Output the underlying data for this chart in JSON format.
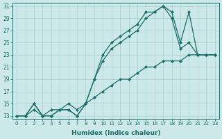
{
  "xlabel": "Humidex (Indice chaleur)",
  "bg_color": "#cce8e8",
  "line_color": "#1a6e6a",
  "grid_color": "#aad0d0",
  "xlim": [
    -0.5,
    23.5
  ],
  "ylim": [
    12.5,
    31.5
  ],
  "xticks": [
    0,
    1,
    2,
    3,
    4,
    5,
    6,
    7,
    8,
    9,
    10,
    11,
    12,
    13,
    14,
    15,
    16,
    17,
    18,
    19,
    20,
    21,
    22,
    23
  ],
  "yticks": [
    13,
    15,
    17,
    19,
    21,
    23,
    25,
    27,
    29,
    31
  ],
  "line1_x": [
    0,
    1,
    2,
    3,
    4,
    5,
    6,
    7,
    8,
    9,
    10,
    11,
    12,
    13,
    14,
    15,
    16,
    17,
    18,
    19,
    20,
    21,
    22,
    23
  ],
  "line1_y": [
    13,
    13,
    15,
    13,
    13,
    14,
    14,
    13,
    15,
    19,
    22,
    24,
    25,
    26,
    27,
    29,
    30,
    31,
    29,
    24,
    25,
    23,
    23,
    23
  ],
  "line2_x": [
    0,
    1,
    2,
    3,
    4,
    5,
    6,
    7,
    8,
    9,
    10,
    11,
    12,
    13,
    14,
    15,
    16,
    17,
    18,
    19,
    20,
    21,
    22,
    23
  ],
  "line2_y": [
    13,
    13,
    15,
    13,
    13,
    14,
    14,
    13,
    15,
    19,
    23,
    25,
    26,
    27,
    28,
    30,
    30,
    31,
    30,
    25,
    30,
    23,
    23,
    23
  ],
  "line3_x": [
    0,
    1,
    2,
    3,
    4,
    5,
    6,
    7,
    8,
    9,
    10,
    11,
    12,
    13,
    14,
    15,
    16,
    17,
    18,
    19,
    20,
    21,
    22,
    23
  ],
  "line3_y": [
    13,
    13,
    14,
    13,
    14,
    14,
    15,
    14,
    15,
    16,
    17,
    18,
    19,
    19,
    20,
    21,
    21,
    22,
    22,
    22,
    23,
    23,
    23,
    23
  ]
}
